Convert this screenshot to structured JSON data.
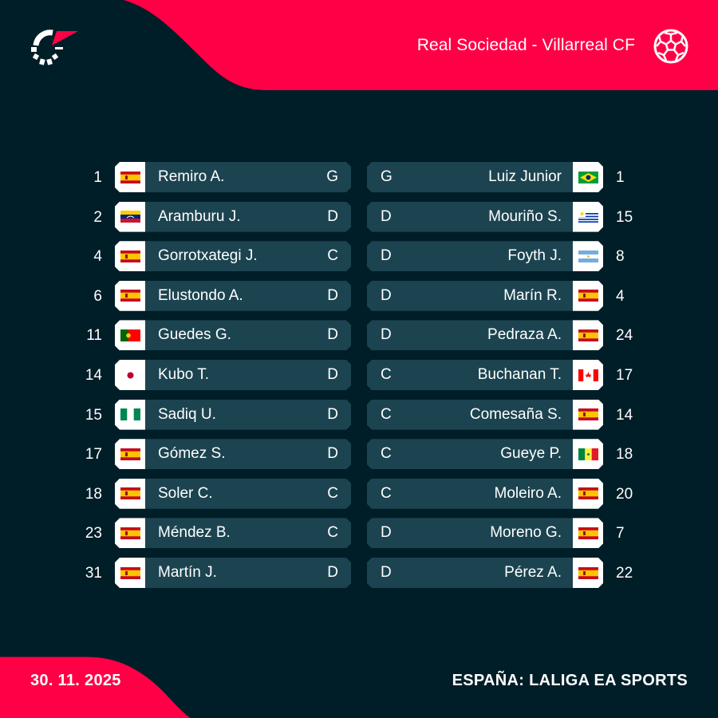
{
  "header": {
    "match_title": "Real Sociedad - Villarreal CF",
    "logo_icon": "flashscore-logo-icon",
    "sport_icon": "soccer-ball-icon"
  },
  "colors": {
    "background": "#001e28",
    "accent": "#ff0046",
    "row_bar": "#1c4450",
    "flag_cell": "#ffffff"
  },
  "home": {
    "team": "Real Sociedad",
    "players": [
      {
        "number": "1",
        "flag": "spain",
        "name": "Remiro A.",
        "position": "G"
      },
      {
        "number": "2",
        "flag": "venezuela",
        "name": "Aramburu J.",
        "position": "D"
      },
      {
        "number": "4",
        "flag": "spain",
        "name": "Gorrotxategi J.",
        "position": "C"
      },
      {
        "number": "6",
        "flag": "spain",
        "name": "Elustondo A.",
        "position": "D"
      },
      {
        "number": "11",
        "flag": "portugal",
        "name": "Guedes G.",
        "position": "D"
      },
      {
        "number": "14",
        "flag": "japan",
        "name": "Kubo T.",
        "position": "D"
      },
      {
        "number": "15",
        "flag": "nigeria",
        "name": "Sadiq U.",
        "position": "D"
      },
      {
        "number": "17",
        "flag": "spain",
        "name": "Gómez S.",
        "position": "D"
      },
      {
        "number": "18",
        "flag": "spain",
        "name": "Soler C.",
        "position": "C"
      },
      {
        "number": "23",
        "flag": "spain",
        "name": "Méndez B.",
        "position": "C"
      },
      {
        "number": "31",
        "flag": "spain",
        "name": "Martín J.",
        "position": "D"
      }
    ]
  },
  "away": {
    "team": "Villarreal CF",
    "players": [
      {
        "number": "1",
        "flag": "brazil",
        "name": "Luiz Junior",
        "position": "G"
      },
      {
        "number": "15",
        "flag": "uruguay",
        "name": "Mouriño S.",
        "position": "D"
      },
      {
        "number": "8",
        "flag": "argentina",
        "name": "Foyth J.",
        "position": "D"
      },
      {
        "number": "4",
        "flag": "spain",
        "name": "Marín R.",
        "position": "D"
      },
      {
        "number": "24",
        "flag": "spain",
        "name": "Pedraza A.",
        "position": "D"
      },
      {
        "number": "17",
        "flag": "canada",
        "name": "Buchanan T.",
        "position": "C"
      },
      {
        "number": "14",
        "flag": "spain",
        "name": "Comesaña S.",
        "position": "C"
      },
      {
        "number": "18",
        "flag": "senegal",
        "name": "Gueye P.",
        "position": "C"
      },
      {
        "number": "20",
        "flag": "spain",
        "name": "Moleiro A.",
        "position": "C"
      },
      {
        "number": "7",
        "flag": "spain",
        "name": "Moreno G.",
        "position": "D"
      },
      {
        "number": "22",
        "flag": "spain",
        "name": "Pérez A.",
        "position": "D"
      }
    ]
  },
  "footer": {
    "date": "30. 11. 2025",
    "competition": "ESPAÑA: LALIGA EA SPORTS"
  }
}
